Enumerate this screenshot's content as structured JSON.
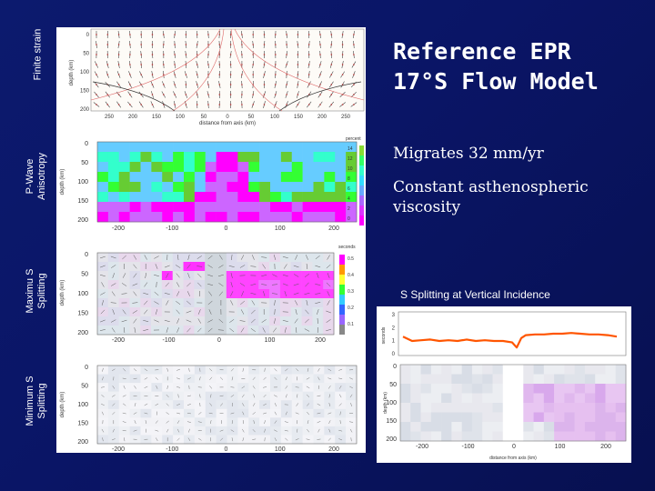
{
  "slide": {
    "title": "Reference EPR\n17°S Flow Model",
    "bullets": [
      "Migrates 32 mm/yr",
      "Constant asthenospheric viscosity"
    ],
    "caption": "S Splitting at Vertical Incidence"
  },
  "row_labels": [
    "Finite strain",
    "P-Wave Anisotropy",
    "Maximu S Splitting",
    "Minimum S Splitting"
  ],
  "panels": {
    "finite_strain": {
      "ylabel": "depth (km)",
      "xlabel": "distance from axis (km)",
      "yticks": [
        "0",
        "50",
        "100",
        "150",
        "200"
      ],
      "xticks": [
        "250",
        "200",
        "150",
        "100",
        "50",
        "0",
        "50",
        "100",
        "150",
        "200",
        "250"
      ]
    },
    "p_wave": {
      "ylabel": "depth (km)",
      "yticks": [
        "0",
        "50",
        "100",
        "150",
        "200"
      ],
      "xticks": [
        "-200",
        "-100",
        "0",
        "100",
        "200"
      ],
      "colorbar_title": "percent",
      "colorbar_ticks": [
        "14",
        "12",
        "10",
        "8",
        "6",
        "4",
        "2",
        "0"
      ],
      "colors": [
        "#ff00ff",
        "#cc66ff",
        "#66ccff",
        "#33ffcc",
        "#33ff33",
        "#66cc33"
      ]
    },
    "max_s": {
      "ylabel": "depth (km)",
      "yticks": [
        "0",
        "50",
        "100",
        "150",
        "200"
      ],
      "xticks": [
        "-200",
        "-100",
        "0",
        "100",
        "200"
      ],
      "colorbar_title": "seconds",
      "colorbar_ticks": [
        "0.5",
        "0.4",
        "0.3",
        "0.2",
        "0.1"
      ]
    },
    "min_s": {
      "ylabel": "depth (km)",
      "yticks": [
        "0",
        "50",
        "100",
        "150",
        "200"
      ],
      "xticks": [
        "-200",
        "-100",
        "0",
        "100",
        "200"
      ]
    }
  },
  "chart_data": {
    "type": "line",
    "ylabel": "seconds",
    "xlabel": "distance from axis (km)",
    "yticks": [
      "3",
      "2",
      "1",
      "0"
    ],
    "ylim": [
      0,
      3
    ],
    "xlim": [
      -260,
      240
    ],
    "x": [
      -250,
      -230,
      -210,
      -190,
      -170,
      -150,
      -130,
      -110,
      -90,
      -70,
      -50,
      -30,
      -10,
      0,
      10,
      20,
      40,
      60,
      80,
      100,
      120,
      140,
      160,
      180,
      200,
      220
    ],
    "values": [
      1.3,
      1.0,
      1.05,
      1.1,
      1.0,
      1.05,
      1.0,
      1.1,
      1.0,
      1.05,
      1.0,
      1.0,
      0.9,
      0.55,
      1.2,
      1.4,
      1.45,
      1.45,
      1.5,
      1.5,
      1.55,
      1.5,
      1.45,
      1.45,
      1.4,
      1.3
    ],
    "color": "#ff5500"
  },
  "bottom_panel": {
    "ylabel": "depth (km)",
    "xlabel": "distance from axis (km)",
    "yticks": [
      "0",
      "50",
      "100",
      "150",
      "200"
    ],
    "xticks": [
      "-200",
      "-100",
      "0",
      "100",
      "200"
    ]
  }
}
